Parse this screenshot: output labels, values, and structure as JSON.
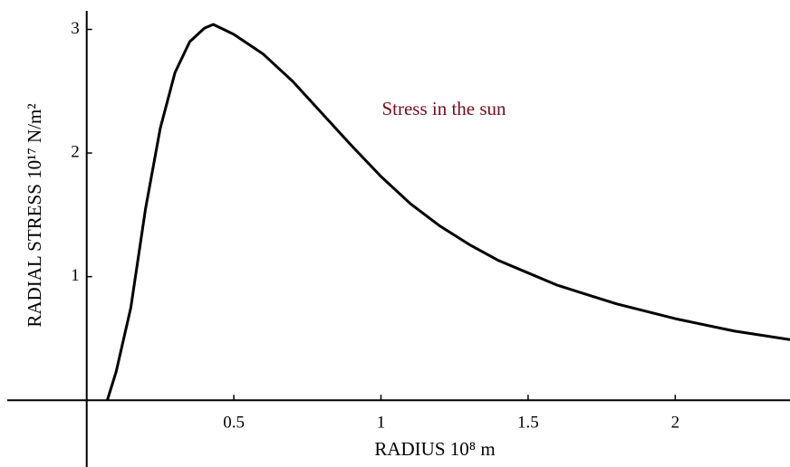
{
  "chart_data": {
    "type": "line",
    "xlabel": "RADIUS 10⁸  m",
    "ylabel": "RADIAL STRESS  10¹⁷  N/m²",
    "annotation": "Stress in the sun",
    "x": [
      0.07,
      0.1,
      0.15,
      0.2,
      0.25,
      0.3,
      0.35,
      0.4,
      0.43,
      0.5,
      0.6,
      0.7,
      0.8,
      0.9,
      1.0,
      1.1,
      1.2,
      1.3,
      1.4,
      1.5,
      1.6,
      1.8,
      2.0,
      2.2,
      2.39
    ],
    "series": [
      {
        "name": "Stress in the sun",
        "color": "#000000",
        "values": [
          0,
          0.23,
          0.75,
          1.55,
          2.2,
          2.65,
          2.9,
          3.01,
          3.04,
          2.96,
          2.8,
          2.58,
          2.32,
          2.06,
          1.81,
          1.59,
          1.41,
          1.26,
          1.13,
          1.03,
          0.93,
          0.78,
          0.66,
          0.56,
          0.49
        ]
      }
    ],
    "xlim": [
      -0.27,
      2.39
    ],
    "ylim": [
      -0.54,
      3.15
    ],
    "xticks": [
      0.5,
      1,
      1.5,
      2
    ],
    "yticks": [
      1,
      2,
      3
    ]
  }
}
